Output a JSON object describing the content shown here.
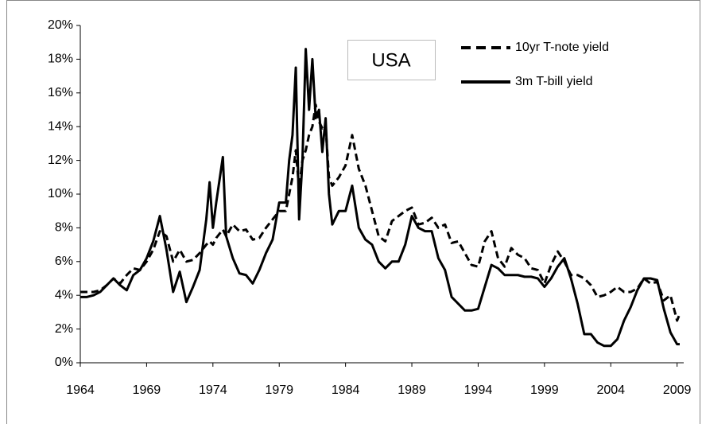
{
  "chart_data": {
    "type": "line",
    "annotation": "USA",
    "legend": "top-right",
    "x": [
      1964,
      1964.5,
      1965,
      1965.5,
      1966,
      1966.5,
      1967,
      1967.5,
      1968,
      1968.5,
      1969,
      1969.5,
      1970,
      1970.5,
      1971,
      1971.5,
      1972,
      1972.5,
      1973,
      1973.5,
      1973.75,
      1974,
      1974.25,
      1974.75,
      1975,
      1975.5,
      1976,
      1976.5,
      1977,
      1977.5,
      1978,
      1978.5,
      1979,
      1979.5,
      1979.75,
      1980,
      1980.25,
      1980.5,
      1980.75,
      1981,
      1981.25,
      1981.5,
      1981.75,
      1982,
      1982.25,
      1982.5,
      1982.75,
      1983,
      1983.5,
      1984,
      1984.5,
      1985,
      1985.5,
      1986,
      1986.5,
      1987,
      1987.5,
      1988,
      1988.5,
      1989,
      1989.5,
      1990,
      1990.5,
      1991,
      1991.5,
      1992,
      1992.5,
      1993,
      1993.5,
      1994,
      1994.5,
      1995,
      1995.5,
      1996,
      1996.5,
      1997,
      1997.5,
      1998,
      1998.5,
      1999,
      1999.5,
      2000,
      2000.5,
      2001,
      2001.5,
      2002,
      2002.5,
      2003,
      2003.5,
      2004,
      2004.5,
      2005,
      2005.5,
      2006,
      2006.5,
      2007,
      2007.5,
      2008,
      2008.5,
      2009,
      2009.2
    ],
    "series": [
      {
        "name": "10yr T-note yield",
        "color": "#000000",
        "style": "dashed",
        "values": [
          4.2,
          4.2,
          4.2,
          4.3,
          4.6,
          5.0,
          4.7,
          5.2,
          5.6,
          5.5,
          6.0,
          6.7,
          7.8,
          7.5,
          6.0,
          6.7,
          6.0,
          6.1,
          6.5,
          7.0,
          7.2,
          7.0,
          7.4,
          7.9,
          7.5,
          8.2,
          7.8,
          7.9,
          7.3,
          7.4,
          8.0,
          8.5,
          9.0,
          9.0,
          10.0,
          11.0,
          12.6,
          10.3,
          12.0,
          12.6,
          13.5,
          14.0,
          15.3,
          14.3,
          13.9,
          14.0,
          11.0,
          10.5,
          11.0,
          11.7,
          13.5,
          11.5,
          10.5,
          9.0,
          7.5,
          7.2,
          8.4,
          8.7,
          9.0,
          9.2,
          8.2,
          8.3,
          8.6,
          8.0,
          8.2,
          7.1,
          7.2,
          6.5,
          5.8,
          5.7,
          7.2,
          7.8,
          6.2,
          5.7,
          6.8,
          6.4,
          6.2,
          5.6,
          5.5,
          4.7,
          5.8,
          6.6,
          6.0,
          5.2,
          5.2,
          5.0,
          4.6,
          3.9,
          4.0,
          4.2,
          4.5,
          4.2,
          4.2,
          4.4,
          5.0,
          4.7,
          4.8,
          3.7,
          4.0,
          2.5,
          2.9
        ]
      },
      {
        "name": "3m T-bill yield",
        "color": "#000000",
        "style": "solid",
        "values": [
          3.9,
          3.9,
          4.0,
          4.2,
          4.6,
          5.0,
          4.6,
          4.3,
          5.2,
          5.5,
          6.2,
          7.2,
          8.7,
          6.7,
          4.2,
          5.4,
          3.6,
          4.5,
          5.5,
          8.5,
          10.7,
          8.0,
          9.5,
          12.2,
          7.5,
          6.2,
          5.3,
          5.2,
          4.7,
          5.5,
          6.5,
          7.3,
          9.5,
          9.5,
          12.0,
          13.5,
          17.5,
          8.5,
          12.0,
          18.6,
          15.0,
          18.0,
          14.5,
          15.0,
          12.5,
          14.5,
          10.0,
          8.2,
          9.0,
          9.0,
          10.5,
          8.0,
          7.3,
          7.0,
          6.0,
          5.6,
          6.0,
          6.0,
          7.0,
          8.7,
          8.0,
          7.8,
          7.8,
          6.2,
          5.5,
          3.9,
          3.5,
          3.1,
          3.1,
          3.2,
          4.5,
          5.8,
          5.6,
          5.2,
          5.2,
          5.2,
          5.1,
          5.1,
          5.0,
          4.5,
          5.0,
          5.7,
          6.2,
          5.0,
          3.5,
          1.7,
          1.7,
          1.2,
          1.0,
          1.0,
          1.4,
          2.5,
          3.3,
          4.3,
          5.0,
          5.0,
          4.9,
          3.2,
          1.8,
          1.1,
          1.1
        ]
      }
    ],
    "xlim": [
      1964,
      2009.5
    ],
    "xticks": [
      1964,
      1969,
      1974,
      1979,
      1984,
      1989,
      1994,
      1999,
      2004,
      2009
    ],
    "ylim": [
      0,
      20
    ],
    "yticks": [
      {
        "value": 0,
        "label": "0%"
      },
      {
        "value": 2,
        "label": "2%"
      },
      {
        "value": 4,
        "label": "4%"
      },
      {
        "value": 6,
        "label": "6%"
      },
      {
        "value": 8,
        "label": "8%"
      },
      {
        "value": 10,
        "label": "10%"
      },
      {
        "value": 12,
        "label": "12%"
      },
      {
        "value": 14,
        "label": "14%"
      },
      {
        "value": 16,
        "label": "16%"
      },
      {
        "value": 18,
        "label": "18%"
      },
      {
        "value": 20,
        "label": "20%"
      }
    ],
    "grid": false
  }
}
